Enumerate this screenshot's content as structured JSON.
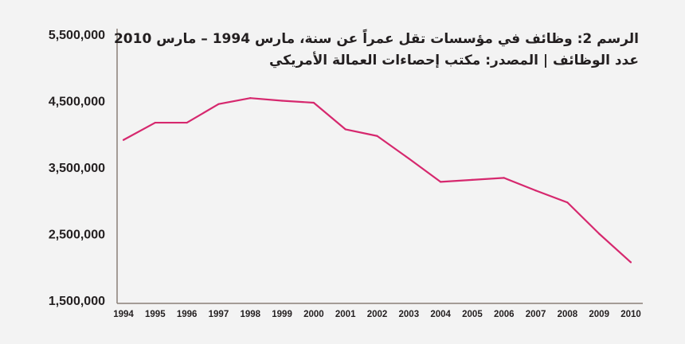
{
  "chart_data": {
    "type": "line",
    "title": "الرسم 2: وظائف في مؤسسات تقل عمراً عن سنة، مارس 1994 – مارس 2010",
    "subtitle": "عدد الوظائف | المصدر: مكتب إحصاءات العمالة الأمريكي",
    "xlabel": "",
    "ylabel": "",
    "ylim": [
      1500000,
      5500000
    ],
    "yticks": [
      5500000,
      4500000,
      3500000,
      2500000,
      1500000
    ],
    "ytick_labels": [
      "5,500,000",
      "4,500,000",
      "3,500,000",
      "2,500,000",
      "1,500,000"
    ],
    "categories": [
      "1994",
      "1995",
      "1996",
      "1997",
      "1998",
      "1999",
      "2000",
      "2001",
      "2002",
      "2003",
      "2004",
      "2005",
      "2006",
      "2007",
      "2008",
      "2009",
      "2010"
    ],
    "series": [
      {
        "name": "عدد الوظائف",
        "color": "#d6286e",
        "values": [
          3910000,
          4170000,
          4170000,
          4450000,
          4540000,
          4500000,
          4470000,
          4070000,
          3970000,
          3630000,
          3280000,
          3310000,
          3340000,
          3150000,
          2970000,
          2500000,
          2070000
        ]
      }
    ],
    "grid": false,
    "legend": "none"
  }
}
